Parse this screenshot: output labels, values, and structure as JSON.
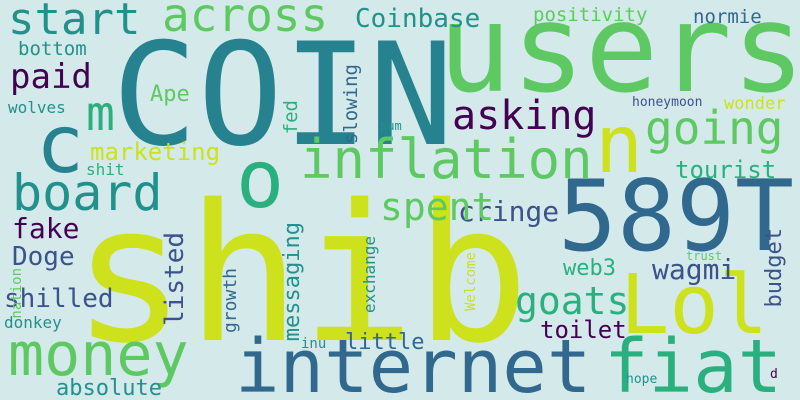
{
  "words": {
    "shib": "shib",
    "coin": "COIN",
    "users": "users",
    "num": "589T",
    "internet": "internet",
    "fiat": "fiat",
    "money": "money",
    "inflation": "inflation",
    "board": "board",
    "lol": "Lol",
    "c": "c",
    "o": "o",
    "n": "n",
    "m": "m",
    "going": "going",
    "across": "across",
    "start": "start",
    "coinbase": "Coinbase",
    "positivity": "positivity",
    "normie": "normie",
    "bottom": "bottom",
    "paid": "paid",
    "asking": "asking",
    "ape": "Ape",
    "marketing": "marketing",
    "shit": "shit",
    "tourist": "tourist",
    "cringe": "cringe",
    "spent": "spent",
    "fake": "fake",
    "doge": "Doge",
    "shilled": "shilled",
    "goats": "goats",
    "wagmi": "wagmi",
    "web3": "web3",
    "toilet": "toilet",
    "budget": "budget",
    "listed": "listed",
    "messaging": "messaging",
    "exchange": "exchange",
    "growth": "growth",
    "little": "little",
    "inu": "inu",
    "absolute": "absolute",
    "donkey": "donkey",
    "wolves": "wolves",
    "nation": "nation",
    "fed": "fed",
    "slowing": "slowing",
    "sum": "sum",
    "honeymoon": "honeymoon",
    "wonder": "wonder",
    "trust": "trust",
    "welcome": "Welcome",
    "hope": "hope",
    "d": "d"
  },
  "colors": {
    "background": "#d4e9ea",
    "yellow_green": "#cde11d",
    "light_green": "#5ec962",
    "green": "#2ab07f",
    "teal": "#21918c",
    "dark_teal": "#26828e",
    "blue": "#31688e",
    "indigo": "#3b528b",
    "purple": "#440154"
  }
}
